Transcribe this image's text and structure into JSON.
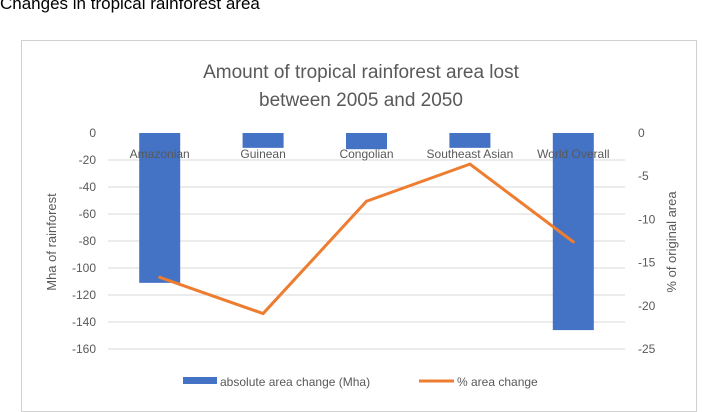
{
  "page": {
    "heading": "Changes in tropical rainforest area"
  },
  "chart_data": {
    "type": "bar",
    "title_lines": [
      "Amount of tropical rainforest area lost",
      "between 2005 and 2050"
    ],
    "categories": [
      "Amazonian",
      "Guinean",
      "Congolian",
      "Southeast Asian",
      "World Overall"
    ],
    "series": [
      {
        "name": "absolute area change (Mha)",
        "type": "bar",
        "axis": "left",
        "color": "#4472C4",
        "values": [
          -111,
          -11,
          -12,
          -11,
          -146
        ]
      },
      {
        "name": "% area change",
        "type": "line",
        "axis": "right",
        "color": "#ED7D31",
        "values": [
          -16.7,
          -20.9,
          -7.9,
          -3.6,
          -12.6
        ]
      }
    ],
    "ylabel": "Mha of rainforest",
    "y2label": "% of original area",
    "ylim": [
      -160,
      0
    ],
    "y2lim": [
      -25,
      0
    ],
    "yticks": [
      0,
      -20,
      -40,
      -60,
      -80,
      -100,
      -120,
      -140,
      -160
    ],
    "y2ticks": [
      0,
      -5,
      -10,
      -15,
      -20,
      -25
    ],
    "grid": true,
    "legend_position": "bottom"
  }
}
